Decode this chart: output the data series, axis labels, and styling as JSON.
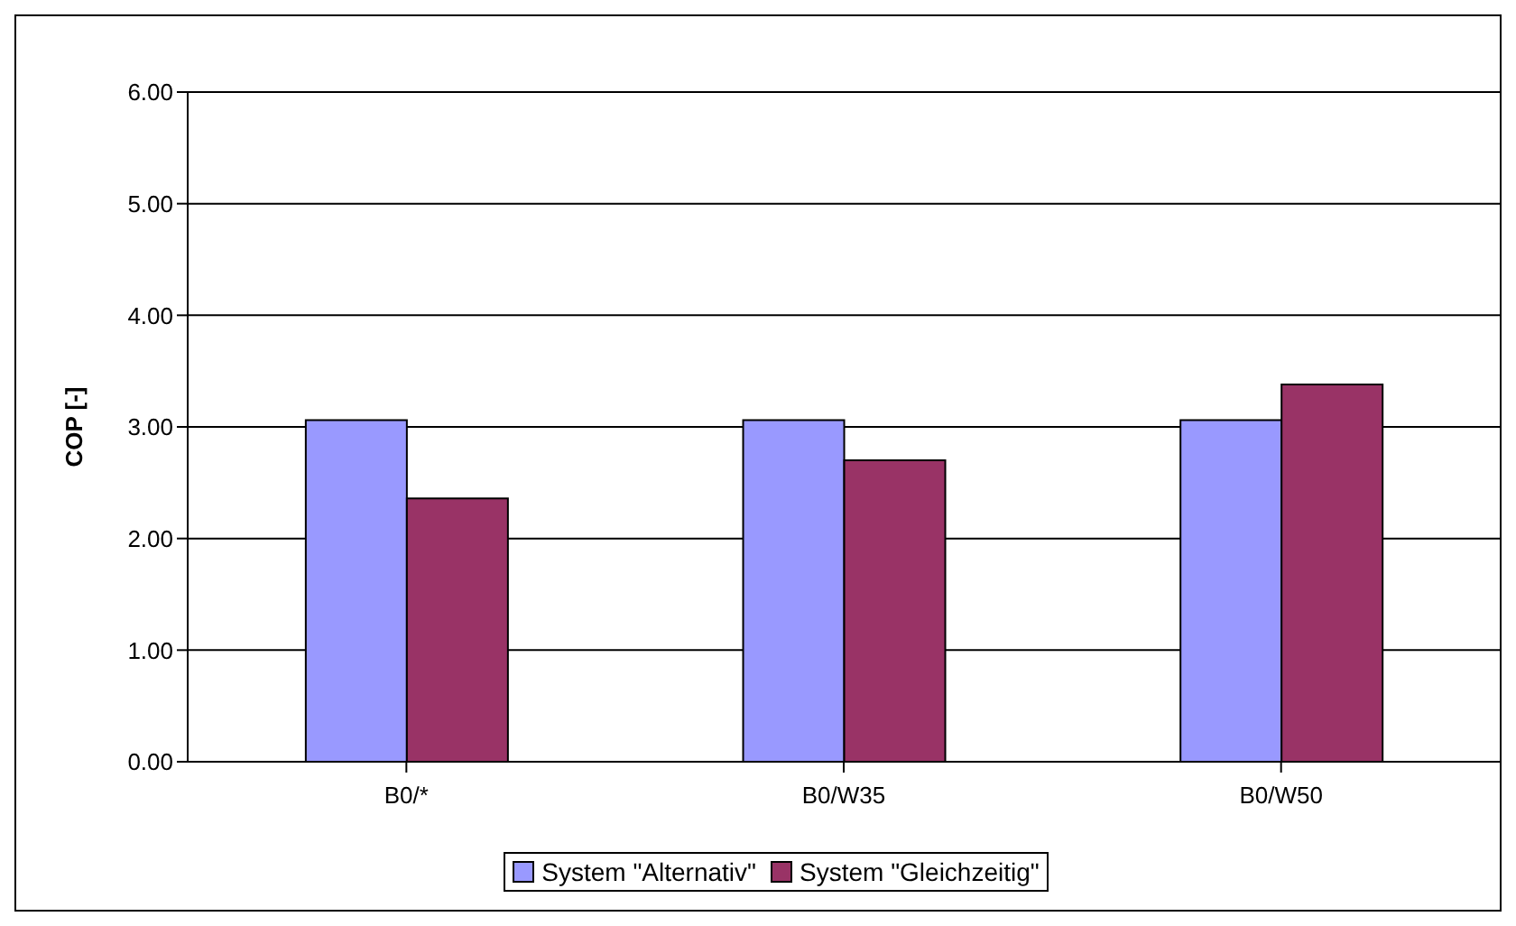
{
  "chart_data": {
    "type": "bar",
    "ylabel": "COP [-]",
    "categories": [
      "B0/*",
      "B0/W35",
      "B0/W50"
    ],
    "series": [
      {
        "name": "System \"Alternativ\"",
        "color": "#9999ff",
        "values": [
          3.06,
          3.06,
          3.06
        ]
      },
      {
        "name": "System \"Gleichzeitig\"",
        "color": "#993366",
        "values": [
          2.36,
          2.7,
          3.38
        ]
      }
    ],
    "ylim": [
      0,
      6
    ],
    "yticks": [
      {
        "value": 0,
        "label": "0.00"
      },
      {
        "value": 1,
        "label": "1.00"
      },
      {
        "value": 2,
        "label": "2.00"
      },
      {
        "value": 3,
        "label": "3.00"
      },
      {
        "value": 4,
        "label": "4.00"
      },
      {
        "value": 5,
        "label": "5.00"
      },
      {
        "value": 6,
        "label": "6.00"
      }
    ],
    "grid": "y",
    "legend": "bottom"
  }
}
